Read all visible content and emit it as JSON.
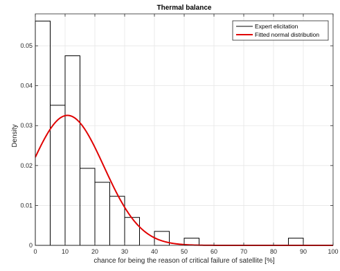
{
  "chart_data": {
    "type": "bar",
    "title": "Thermal balance",
    "xlabel": "chance for being the reason of critical failure of satellite [%]",
    "ylabel": "Density",
    "xlim": [
      0,
      100
    ],
    "ylim": [
      0,
      0.058
    ],
    "grid": true,
    "legend_position": "top-right",
    "x_ticks": [
      0,
      10,
      20,
      30,
      40,
      50,
      60,
      70,
      80,
      90,
      100
    ],
    "y_ticks": [
      0,
      0.01,
      0.02,
      0.03,
      0.04,
      0.05
    ],
    "y_tick_labels": [
      "0",
      "0.01",
      "0.02",
      "0.03",
      "0.04",
      "0.05"
    ],
    "histogram": {
      "name": "Expert elicitation",
      "color": "#000000",
      "bin_edges": [
        0,
        5,
        10,
        15,
        20,
        25,
        30,
        35,
        40,
        45,
        50,
        55,
        60,
        65,
        70,
        75,
        80,
        85,
        90
      ],
      "densities": [
        0.0562,
        0.0351,
        0.0475,
        0.0193,
        0.0158,
        0.0123,
        0.007,
        0.0,
        0.0035,
        0.0,
        0.0018,
        0.0,
        0.0,
        0.0,
        0.0,
        0.0,
        0.0,
        0.0018
      ]
    },
    "fitted_curve": {
      "name": "Fitted normal distribution",
      "color": "#e00000",
      "mean": 10.8,
      "std": 12.25
    }
  }
}
